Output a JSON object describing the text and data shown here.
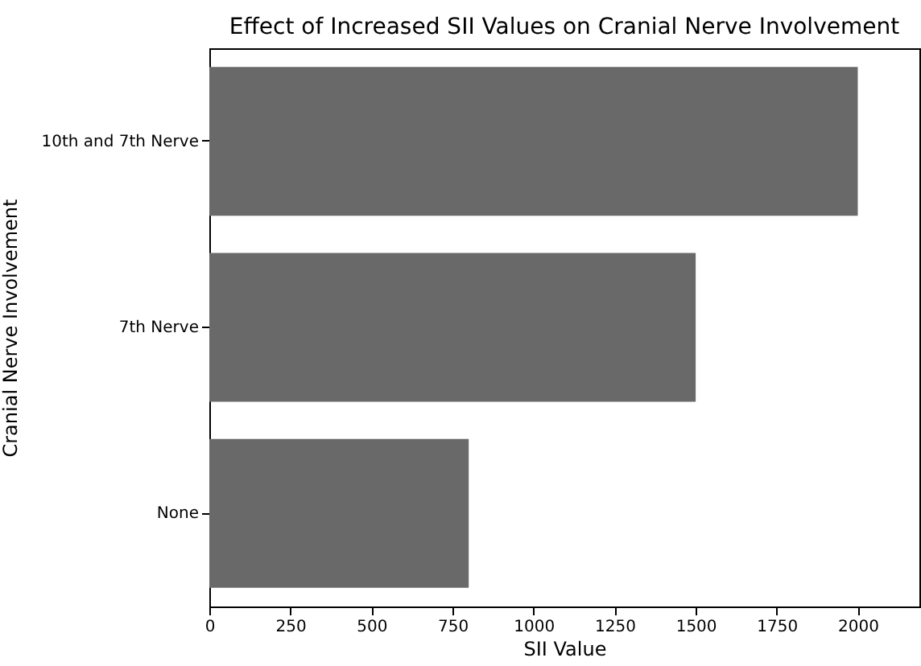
{
  "chart_data": {
    "type": "bar",
    "orientation": "horizontal",
    "title": "Effect of Increased SII Values on Cranial Nerve Involvement",
    "xlabel": "SII Value",
    "ylabel": "Cranial Nerve Involvement",
    "categories": [
      "10th and 7th Nerve",
      "7th Nerve",
      "None"
    ],
    "values": [
      2000,
      1500,
      800
    ],
    "color": "#696969",
    "xlim": [
      0,
      2190
    ],
    "xticks": [
      0,
      250,
      500,
      750,
      1000,
      1250,
      1500,
      1750,
      2000
    ],
    "grid": false
  }
}
